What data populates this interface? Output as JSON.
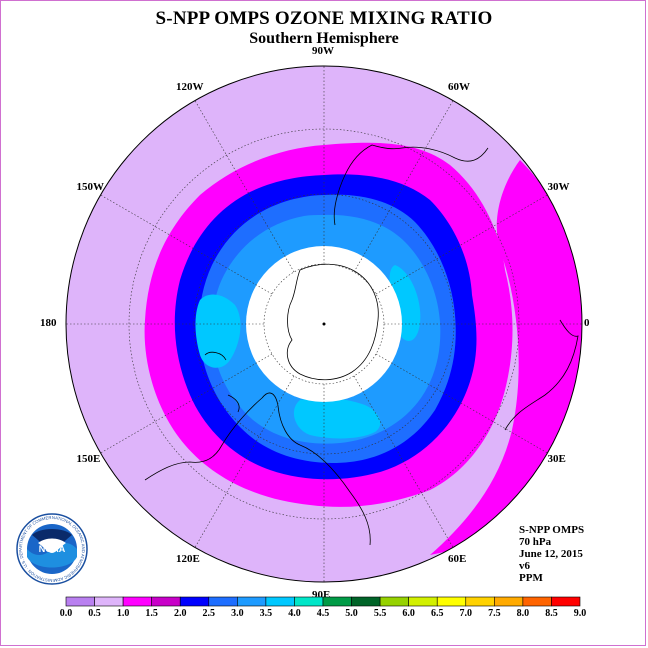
{
  "title": "S-NPP OMPS OZONE MIXING RATIO",
  "subtitle": "Southern Hemisphere",
  "longitude_labels": [
    {
      "text": "90W",
      "deg": -90
    },
    {
      "text": "60W",
      "deg": -60
    },
    {
      "text": "30W",
      "deg": -30
    },
    {
      "text": "0",
      "deg": 0
    },
    {
      "text": "30E",
      "deg": 30
    },
    {
      "text": "60E",
      "deg": 60
    },
    {
      "text": "90E",
      "deg": 90
    },
    {
      "text": "120E",
      "deg": 120
    },
    {
      "text": "150E",
      "deg": 150
    },
    {
      "text": "180",
      "deg": 180
    },
    {
      "text": "150W",
      "deg": -150
    },
    {
      "text": "120W",
      "deg": -120
    }
  ],
  "info": {
    "instrument": "S-NPP OMPS",
    "level": "70 hPa",
    "date": "June 12, 2015",
    "version": "v6",
    "units": "PPM"
  },
  "logo": {
    "text": "NOAA",
    "ring_text": "NATIONAL OCEANIC AND ATMOSPHERIC ADMINISTRATION · U.S. DEPARTMENT OF COMMERCE"
  },
  "colorbar": {
    "labels": [
      "0.0",
      "0.5",
      "1.0",
      "1.5",
      "2.0",
      "2.5",
      "3.0",
      "3.5",
      "4.0",
      "4.5",
      "5.0",
      "5.5",
      "6.0",
      "6.5",
      "7.0",
      "7.5",
      "8.0",
      "8.5",
      "9.0"
    ],
    "colors": [
      "#b980f0",
      "#deb4fa",
      "#ff00ff",
      "#c800c8",
      "#0000ff",
      "#1e6eff",
      "#1e9bff",
      "#00c8ff",
      "#00e6c8",
      "#009b46",
      "#006428",
      "#96d200",
      "#d2f000",
      "#ffff00",
      "#ffd200",
      "#ffaa00",
      "#ff6400",
      "#ff0000",
      "#8c5a3c"
    ]
  },
  "map_data": {
    "projection": "south-polar-stereographic",
    "contour_levels_ppm": [
      1.0,
      1.5,
      2.0,
      2.5,
      3.0,
      3.5
    ],
    "fill_colors": {
      "0.5-1.0": "#deb4fa",
      "1.0-1.5": "#ff00ff",
      "1.5-2.0": "#0000ff",
      "2.0-2.5": "#1e6eff",
      "2.5-3.0": "#1e9bff",
      "3.0-3.5": "#00c8ff",
      "polar_no_data": "#ffffff"
    }
  }
}
